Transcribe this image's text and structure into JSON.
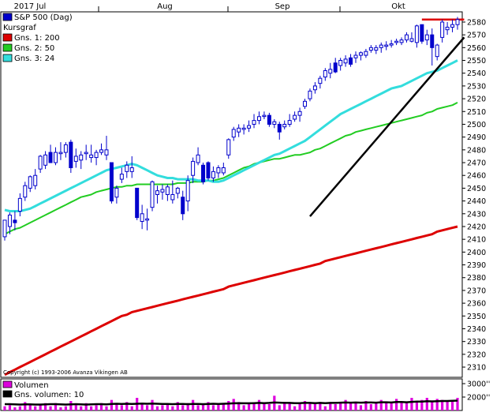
{
  "chart_data": {
    "type": "candlestick",
    "x_labels": [
      "2017 Jul",
      "Aug",
      "Sep",
      "Okt"
    ],
    "y_ticks": [
      2310,
      2320,
      2330,
      2340,
      2350,
      2360,
      2370,
      2380,
      2390,
      2400,
      2410,
      2420,
      2430,
      2440,
      2450,
      2460,
      2470,
      2480,
      2490,
      2500,
      2510,
      2520,
      2530,
      2540,
      2550,
      2560,
      2570,
      2580
    ],
    "ylim": [
      2302,
      2588
    ],
    "copyright": "Copyright (c) 1993-2006 Avanza Vikingen AB",
    "legend": [
      {
        "label": "S&P 500 (Dag)",
        "color": "#0000cc"
      },
      {
        "label": "Kursgraf",
        "color": ""
      },
      {
        "label": "Gns. 1: 200",
        "color": "#dd0000"
      },
      {
        "label": "Gns. 2: 50",
        "color": "#22cc22"
      },
      {
        "label": "Gns. 3: 24",
        "color": "#33dddd"
      }
    ],
    "candles": [
      {
        "o": 2412,
        "h": 2425,
        "l": 2409,
        "c": 2425,
        "d": "up"
      },
      {
        "o": 2420,
        "h": 2431,
        "l": 2414,
        "c": 2429,
        "d": "up"
      },
      {
        "o": 2425,
        "h": 2432,
        "l": 2417,
        "c": 2423,
        "d": "down"
      },
      {
        "o": 2432,
        "h": 2446,
        "l": 2428,
        "c": 2442,
        "d": "up"
      },
      {
        "o": 2443,
        "h": 2455,
        "l": 2440,
        "c": 2452,
        "d": "up"
      },
      {
        "o": 2450,
        "h": 2460,
        "l": 2447,
        "c": 2459,
        "d": "up"
      },
      {
        "o": 2452,
        "h": 2465,
        "l": 2449,
        "c": 2460,
        "d": "up"
      },
      {
        "o": 2465,
        "h": 2476,
        "l": 2462,
        "c": 2475,
        "d": "up"
      },
      {
        "o": 2468,
        "h": 2479,
        "l": 2465,
        "c": 2476,
        "d": "up"
      },
      {
        "o": 2478,
        "h": 2484,
        "l": 2470,
        "c": 2470,
        "d": "down"
      },
      {
        "o": 2470,
        "h": 2482,
        "l": 2468,
        "c": 2478,
        "d": "up"
      },
      {
        "o": 2478,
        "h": 2486,
        "l": 2472,
        "c": 2477,
        "d": "up"
      },
      {
        "o": 2478,
        "h": 2486,
        "l": 2474,
        "c": 2484,
        "d": "up"
      },
      {
        "o": 2486,
        "h": 2488,
        "l": 2462,
        "c": 2466,
        "d": "down"
      },
      {
        "o": 2471,
        "h": 2481,
        "l": 2466,
        "c": 2475,
        "d": "up"
      },
      {
        "o": 2472,
        "h": 2479,
        "l": 2465,
        "c": 2476,
        "d": "up"
      },
      {
        "o": 2478,
        "h": 2484,
        "l": 2472,
        "c": 2477,
        "d": "up"
      },
      {
        "o": 2474,
        "h": 2484,
        "l": 2470,
        "c": 2476,
        "d": "up"
      },
      {
        "o": 2474,
        "h": 2480,
        "l": 2468,
        "c": 2478,
        "d": "up"
      },
      {
        "o": 2478,
        "h": 2485,
        "l": 2476,
        "c": 2480,
        "d": "up"
      },
      {
        "o": 2480,
        "h": 2491,
        "l": 2472,
        "c": 2476,
        "d": "up"
      },
      {
        "o": 2470,
        "h": 2470,
        "l": 2438,
        "c": 2440,
        "d": "down"
      },
      {
        "o": 2443,
        "h": 2452,
        "l": 2438,
        "c": 2450,
        "d": "up"
      },
      {
        "o": 2457,
        "h": 2466,
        "l": 2454,
        "c": 2461,
        "d": "up"
      },
      {
        "o": 2463,
        "h": 2471,
        "l": 2458,
        "c": 2468,
        "d": "up"
      },
      {
        "o": 2466,
        "h": 2475,
        "l": 2458,
        "c": 2463,
        "d": "up"
      },
      {
        "o": 2450,
        "h": 2450,
        "l": 2425,
        "c": 2427,
        "d": "down"
      },
      {
        "o": 2430,
        "h": 2437,
        "l": 2418,
        "c": 2424,
        "d": "up"
      },
      {
        "o": 2426,
        "h": 2434,
        "l": 2417,
        "c": 2425,
        "d": "up"
      },
      {
        "o": 2435,
        "h": 2456,
        "l": 2432,
        "c": 2455,
        "d": "up"
      },
      {
        "o": 2445,
        "h": 2452,
        "l": 2438,
        "c": 2448,
        "d": "up"
      },
      {
        "o": 2447,
        "h": 2453,
        "l": 2441,
        "c": 2449,
        "d": "up"
      },
      {
        "o": 2445,
        "h": 2453,
        "l": 2440,
        "c": 2451,
        "d": "up"
      },
      {
        "o": 2445,
        "h": 2456,
        "l": 2438,
        "c": 2441,
        "d": "up"
      },
      {
        "o": 2446,
        "h": 2451,
        "l": 2442,
        "c": 2450,
        "d": "up"
      },
      {
        "o": 2443,
        "h": 2448,
        "l": 2425,
        "c": 2430,
        "d": "down"
      },
      {
        "o": 2440,
        "h": 2460,
        "l": 2432,
        "c": 2456,
        "d": "up"
      },
      {
        "o": 2460,
        "h": 2474,
        "l": 2454,
        "c": 2471,
        "d": "up"
      },
      {
        "o": 2476,
        "h": 2482,
        "l": 2468,
        "c": 2470,
        "d": "up"
      },
      {
        "o": 2468,
        "h": 2470,
        "l": 2453,
        "c": 2455,
        "d": "down"
      },
      {
        "o": 2470,
        "h": 2471,
        "l": 2456,
        "c": 2458,
        "d": "down"
      },
      {
        "o": 2458,
        "h": 2467,
        "l": 2455,
        "c": 2463,
        "d": "up"
      },
      {
        "o": 2462,
        "h": 2468,
        "l": 2458,
        "c": 2466,
        "d": "up"
      },
      {
        "o": 2466,
        "h": 2470,
        "l": 2460,
        "c": 2462,
        "d": "up"
      },
      {
        "o": 2476,
        "h": 2489,
        "l": 2473,
        "c": 2488,
        "d": "up"
      },
      {
        "o": 2490,
        "h": 2498,
        "l": 2487,
        "c": 2496,
        "d": "up"
      },
      {
        "o": 2494,
        "h": 2500,
        "l": 2490,
        "c": 2497,
        "d": "up"
      },
      {
        "o": 2496,
        "h": 2500,
        "l": 2492,
        "c": 2497,
        "d": "up"
      },
      {
        "o": 2497,
        "h": 2503,
        "l": 2494,
        "c": 2499,
        "d": "up"
      },
      {
        "o": 2500,
        "h": 2508,
        "l": 2497,
        "c": 2503,
        "d": "up"
      },
      {
        "o": 2503,
        "h": 2510,
        "l": 2500,
        "c": 2506,
        "d": "up"
      },
      {
        "o": 2507,
        "h": 2510,
        "l": 2504,
        "c": 2507,
        "d": "up"
      },
      {
        "o": 2507,
        "h": 2509,
        "l": 2498,
        "c": 2500,
        "d": "down"
      },
      {
        "o": 2500,
        "h": 2504,
        "l": 2497,
        "c": 2502,
        "d": "up"
      },
      {
        "o": 2500,
        "h": 2502,
        "l": 2488,
        "c": 2494,
        "d": "down"
      },
      {
        "o": 2498,
        "h": 2503,
        "l": 2496,
        "c": 2500,
        "d": "up"
      },
      {
        "o": 2500,
        "h": 2508,
        "l": 2498,
        "c": 2503,
        "d": "up"
      },
      {
        "o": 2504,
        "h": 2510,
        "l": 2502,
        "c": 2507,
        "d": "up"
      },
      {
        "o": 2507,
        "h": 2513,
        "l": 2502,
        "c": 2510,
        "d": "up"
      },
      {
        "o": 2514,
        "h": 2520,
        "l": 2512,
        "c": 2518,
        "d": "up"
      },
      {
        "o": 2520,
        "h": 2528,
        "l": 2518,
        "c": 2526,
        "d": "up"
      },
      {
        "o": 2527,
        "h": 2533,
        "l": 2524,
        "c": 2530,
        "d": "up"
      },
      {
        "o": 2532,
        "h": 2538,
        "l": 2528,
        "c": 2536,
        "d": "up"
      },
      {
        "o": 2537,
        "h": 2544,
        "l": 2534,
        "c": 2542,
        "d": "up"
      },
      {
        "o": 2543,
        "h": 2548,
        "l": 2536,
        "c": 2540,
        "d": "up"
      },
      {
        "o": 2548,
        "h": 2552,
        "l": 2540,
        "c": 2541,
        "d": "down"
      },
      {
        "o": 2546,
        "h": 2552,
        "l": 2542,
        "c": 2550,
        "d": "up"
      },
      {
        "o": 2548,
        "h": 2554,
        "l": 2545,
        "c": 2551,
        "d": "up"
      },
      {
        "o": 2552,
        "h": 2555,
        "l": 2545,
        "c": 2547,
        "d": "down"
      },
      {
        "o": 2552,
        "h": 2557,
        "l": 2548,
        "c": 2554,
        "d": "up"
      },
      {
        "o": 2554,
        "h": 2557,
        "l": 2550,
        "c": 2556,
        "d": "up"
      },
      {
        "o": 2554,
        "h": 2559,
        "l": 2552,
        "c": 2557,
        "d": "up"
      },
      {
        "o": 2558,
        "h": 2562,
        "l": 2556,
        "c": 2560,
        "d": "up"
      },
      {
        "o": 2558,
        "h": 2562,
        "l": 2555,
        "c": 2560,
        "d": "up"
      },
      {
        "o": 2560,
        "h": 2564,
        "l": 2556,
        "c": 2562,
        "d": "up"
      },
      {
        "o": 2561,
        "h": 2565,
        "l": 2558,
        "c": 2562,
        "d": "up"
      },
      {
        "o": 2562,
        "h": 2566,
        "l": 2560,
        "c": 2563,
        "d": "up"
      },
      {
        "o": 2564,
        "h": 2567,
        "l": 2562,
        "c": 2565,
        "d": "up"
      },
      {
        "o": 2564,
        "h": 2568,
        "l": 2562,
        "c": 2566,
        "d": "up"
      },
      {
        "o": 2566,
        "h": 2572,
        "l": 2564,
        "c": 2570,
        "d": "up"
      },
      {
        "o": 2565,
        "h": 2572,
        "l": 2564,
        "c": 2567,
        "d": "up"
      },
      {
        "o": 2564,
        "h": 2578,
        "l": 2560,
        "c": 2577,
        "d": "up"
      },
      {
        "o": 2578,
        "h": 2578,
        "l": 2563,
        "c": 2565,
        "d": "down"
      },
      {
        "o": 2566,
        "h": 2574,
        "l": 2562,
        "c": 2570,
        "d": "up"
      },
      {
        "o": 2570,
        "h": 2575,
        "l": 2546,
        "c": 2560,
        "d": "down"
      },
      {
        "o": 2553,
        "h": 2563,
        "l": 2550,
        "c": 2562,
        "d": "up"
      },
      {
        "o": 2568,
        "h": 2582,
        "l": 2564,
        "c": 2580,
        "d": "up"
      },
      {
        "o": 2574,
        "h": 2580,
        "l": 2570,
        "c": 2576,
        "d": "up"
      },
      {
        "o": 2576,
        "h": 2582,
        "l": 2572,
        "c": 2578,
        "d": "up"
      },
      {
        "o": 2578,
        "h": 2584,
        "l": 2574,
        "c": 2582,
        "d": "up"
      }
    ],
    "ma200": [
      2304,
      2306,
      2308,
      2310,
      2312,
      2314,
      2316,
      2318,
      2320,
      2322,
      2324,
      2326,
      2328,
      2330,
      2332,
      2334,
      2336,
      2338,
      2340,
      2342,
      2344,
      2346,
      2348,
      2350,
      2351,
      2353,
      2354,
      2355,
      2356,
      2357,
      2358,
      2359,
      2360,
      2361,
      2362,
      2363,
      2364,
      2365,
      2366,
      2367,
      2368,
      2369,
      2370,
      2371,
      2373,
      2374,
      2375,
      2376,
      2377,
      2378,
      2379,
      2380,
      2381,
      2382,
      2383,
      2384,
      2385,
      2386,
      2387,
      2388,
      2389,
      2390,
      2391,
      2393,
      2394,
      2395,
      2396,
      2397,
      2398,
      2399,
      2400,
      2401,
      2402,
      2403,
      2404,
      2405,
      2406,
      2407,
      2408,
      2409,
      2410,
      2411,
      2412,
      2413,
      2414,
      2416,
      2417,
      2418,
      2419,
      2420
    ],
    "ma50": [
      2414,
      2416,
      2418,
      2419,
      2421,
      2423,
      2425,
      2427,
      2429,
      2431,
      2433,
      2435,
      2437,
      2439,
      2441,
      2443,
      2444,
      2445,
      2447,
      2448,
      2449,
      2450,
      2451,
      2451,
      2452,
      2452,
      2453,
      2453,
      2453,
      2453,
      2453,
      2453,
      2453,
      2453,
      2454,
      2454,
      2454,
      2455,
      2455,
      2455,
      2456,
      2456,
      2457,
      2458,
      2460,
      2462,
      2464,
      2466,
      2467,
      2469,
      2470,
      2471,
      2472,
      2473,
      2473,
      2474,
      2475,
      2476,
      2476,
      2477,
      2478,
      2480,
      2481,
      2483,
      2485,
      2487,
      2489,
      2491,
      2492,
      2494,
      2495,
      2496,
      2497,
      2498,
      2499,
      2500,
      2501,
      2502,
      2503,
      2504,
      2505,
      2506,
      2507,
      2509,
      2510,
      2512,
      2513,
      2514,
      2515,
      2517
    ],
    "ma24": [
      2433,
      2432,
      2432,
      2432,
      2433,
      2434,
      2436,
      2438,
      2440,
      2442,
      2444,
      2446,
      2448,
      2450,
      2452,
      2454,
      2456,
      2458,
      2460,
      2462,
      2464,
      2465,
      2466,
      2467,
      2468,
      2469,
      2468,
      2466,
      2464,
      2462,
      2460,
      2459,
      2458,
      2458,
      2457,
      2457,
      2457,
      2457,
      2456,
      2456,
      2456,
      2455,
      2455,
      2456,
      2458,
      2460,
      2462,
      2464,
      2466,
      2468,
      2470,
      2472,
      2474,
      2476,
      2477,
      2479,
      2481,
      2483,
      2485,
      2487,
      2490,
      2493,
      2496,
      2499,
      2502,
      2505,
      2508,
      2510,
      2512,
      2514,
      2516,
      2518,
      2520,
      2522,
      2524,
      2526,
      2528,
      2529,
      2530,
      2532,
      2534,
      2536,
      2538,
      2540,
      2541,
      2542,
      2544,
      2546,
      2548,
      2550
    ],
    "trend_lines": [
      {
        "x0": 60,
        "y0": 2428,
        "x1": 90,
        "y1": 2568,
        "color": "#000000"
      },
      {
        "x0": 82,
        "y0": 2582,
        "x1": 90,
        "y1": 2582,
        "color": "#dd0000"
      }
    ],
    "volume_panel": {
      "legend": [
        {
          "label": "Volumen",
          "color": "#dd00dd"
        },
        {
          "label": "Gns. volumen: 10",
          "color": "#000000"
        }
      ],
      "y_ticks": [
        "3000''",
        "2000''"
      ],
      "values": [
        1900,
        1950,
        1850,
        1900,
        2100,
        1950,
        1900,
        2000,
        2050,
        1900,
        2050,
        1850,
        1900,
        2150,
        1950,
        1900,
        2050,
        1900,
        1950,
        2050,
        1900,
        2200,
        2000,
        1950,
        2100,
        1900,
        2300,
        2050,
        1950,
        2200,
        1900,
        1950,
        2000,
        1900,
        2100,
        1950,
        2050,
        2200,
        1950,
        2000,
        2100,
        1950,
        2000,
        2050,
        2150,
        2250,
        2100,
        1950,
        2050,
        2000,
        2200,
        2050,
        2000,
        2400,
        1950,
        2100,
        2050,
        1900,
        2000,
        2150,
        2050,
        2000,
        2100,
        1900,
        2050,
        2000,
        2100,
        2200,
        2050,
        2100,
        1950,
        2150,
        2000,
        2050,
        2200,
        2100,
        2050,
        2250,
        2100,
        2050,
        2300,
        2150,
        2200,
        2300,
        2150,
        2250,
        2200,
        2150,
        2200,
        2300
      ],
      "avg": [
        2000,
        2000,
        1990,
        1980,
        1990,
        1990,
        1980,
        1980,
        1990,
        2000,
        2000,
        1990,
        1980,
        1990,
        2000,
        1990,
        1980,
        1990,
        2000,
        2000,
        1990,
        2010,
        2020,
        2010,
        2020,
        2010,
        2020,
        2030,
        2020,
        2030,
        2020,
        2010,
        2010,
        2000,
        2010,
        2010,
        2000,
        2010,
        2010,
        2000,
        2010,
        2020,
        2010,
        2020,
        2030,
        2040,
        2050,
        2040,
        2040,
        2050,
        2060,
        2050,
        2060,
        2080,
        2070,
        2060,
        2060,
        2050,
        2050,
        2060,
        2060,
        2050,
        2060,
        2050,
        2060,
        2060,
        2070,
        2080,
        2070,
        2080,
        2070,
        2080,
        2080,
        2070,
        2090,
        2090,
        2080,
        2100,
        2100,
        2090,
        2110,
        2120,
        2120,
        2140,
        2130,
        2140,
        2150,
        2150,
        2160,
        2170
      ],
      "ylim": [
        1700,
        3200
      ]
    }
  }
}
